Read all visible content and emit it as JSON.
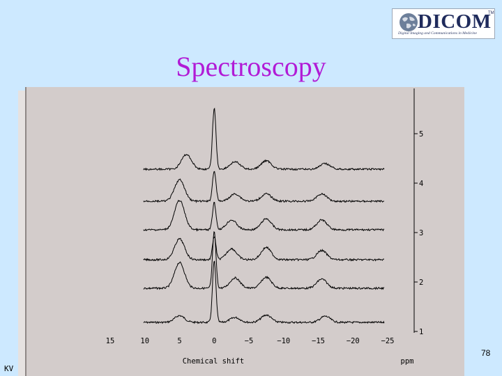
{
  "logo": {
    "brand": "DICOM",
    "trademark": "TM",
    "tagline": "Digital Imaging and Communications in Medicine",
    "icon": "globe-icon"
  },
  "slide": {
    "title": "Spectroscopy",
    "page_number": "78",
    "footer_left": "KV"
  },
  "colors": {
    "background": "#cde9ff",
    "title": "#b11bd6",
    "panel": "#d3cccb",
    "trace": "#000000"
  },
  "chart_data": {
    "type": "line",
    "title": "",
    "xlabel": "Chemical shift",
    "xunit": "ppm",
    "ylabel": "",
    "xlim": [
      15,
      -25
    ],
    "x_ticks": [
      15,
      10,
      5,
      0,
      -5,
      -10,
      -15,
      -20,
      -25
    ],
    "x_tick_labels": [
      "15",
      "10",
      "5",
      "0",
      "−5",
      "−10",
      "−15",
      "−20",
      "−25"
    ],
    "y_ticks": [
      1,
      2,
      3,
      4,
      5
    ],
    "grid": false,
    "legend": "none",
    "series": [
      {
        "spectrum_index": 1,
        "peaks": [
          [
            0,
            1.0
          ],
          [
            5,
            0.11
          ],
          [
            -3,
            0.08
          ],
          [
            -7.5,
            0.12
          ],
          [
            -16,
            0.1
          ]
        ]
      },
      {
        "spectrum_index": 2,
        "peaks": [
          [
            0,
            0.92
          ],
          [
            5,
            0.42
          ],
          [
            -3,
            0.17
          ],
          [
            -7.5,
            0.18
          ],
          [
            -15.5,
            0.15
          ]
        ]
      },
      {
        "spectrum_index": 3,
        "peaks": [
          [
            0,
            0.38
          ],
          [
            5,
            0.34
          ],
          [
            -2.5,
            0.18
          ],
          [
            -7.5,
            0.2
          ],
          [
            -15.5,
            0.15
          ]
        ]
      },
      {
        "spectrum_index": 4,
        "peaks": [
          [
            0,
            0.44
          ],
          [
            5,
            0.48
          ],
          [
            -2.5,
            0.16
          ],
          [
            -7.5,
            0.18
          ],
          [
            -15.5,
            0.16
          ]
        ]
      },
      {
        "spectrum_index": 5,
        "peaks": [
          [
            0,
            0.5
          ],
          [
            5,
            0.35
          ],
          [
            -3,
            0.12
          ],
          [
            -7.5,
            0.12
          ],
          [
            -15.5,
            0.12
          ]
        ]
      },
      {
        "spectrum_index": 6,
        "peaks": [
          [
            0,
            1.0
          ],
          [
            4,
            0.24
          ],
          [
            -3,
            0.12
          ],
          [
            -7.5,
            0.14
          ],
          [
            -16,
            0.09
          ]
        ]
      }
    ],
    "x_sample_start": 10.2,
    "x_sample_end": -24.5
  }
}
